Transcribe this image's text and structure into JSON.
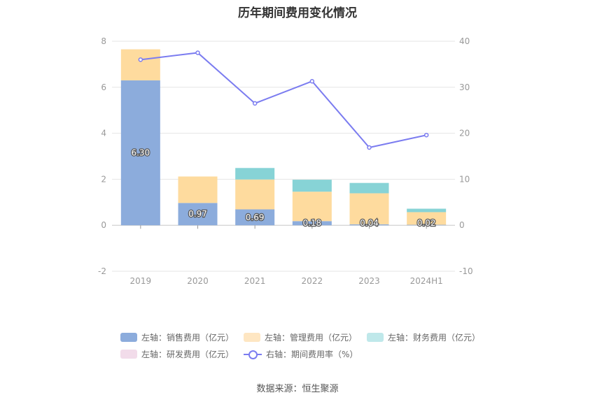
{
  "chart_data": {
    "type": "bar",
    "title": "历年期间费用变化情况",
    "categories": [
      "2019",
      "2020",
      "2021",
      "2022",
      "2023",
      "2024H1"
    ],
    "left_axis": {
      "ylim": [
        -2,
        8
      ],
      "ticks": [
        "-2",
        "0",
        "2",
        "4",
        "6",
        "8"
      ]
    },
    "right_axis": {
      "ylim": [
        -10,
        40
      ],
      "ticks": [
        "-10",
        "0",
        "10",
        "20",
        "30",
        "40"
      ]
    },
    "series": [
      {
        "name": "左轴：销售费用（亿元）",
        "axis": "left",
        "type": "stacked-bar",
        "color": "#8cacdc",
        "values": [
          6.3,
          0.97,
          0.69,
          0.18,
          0.04,
          0.02
        ],
        "labels": [
          "6.30",
          "0.97",
          "0.69",
          "0.18",
          "0.04",
          "0.02"
        ]
      },
      {
        "name": "左轴：管理费用（亿元）",
        "axis": "left",
        "type": "stacked-bar",
        "color": "#fedb9e",
        "values": [
          1.35,
          1.15,
          1.3,
          1.28,
          1.35,
          0.55
        ]
      },
      {
        "name": "左轴：财务费用（亿元）",
        "axis": "left",
        "type": "stacked-bar",
        "color": "#87d3d6",
        "values": [
          0.0,
          0.0,
          0.5,
          0.52,
          0.45,
          0.15
        ]
      },
      {
        "name": "左轴：研发费用（亿元）",
        "axis": "left",
        "type": "stacked-bar",
        "color": "#f2dcea",
        "values": [
          0,
          0,
          0,
          0,
          0,
          0
        ]
      },
      {
        "name": "右轴：期间费用率（%）",
        "axis": "right",
        "type": "line",
        "color": "#7b7cf0",
        "values": [
          36.0,
          37.5,
          26.5,
          31.3,
          16.9,
          19.6
        ]
      }
    ],
    "legend_position": "bottom"
  },
  "source": "数据来源：恒生聚源"
}
